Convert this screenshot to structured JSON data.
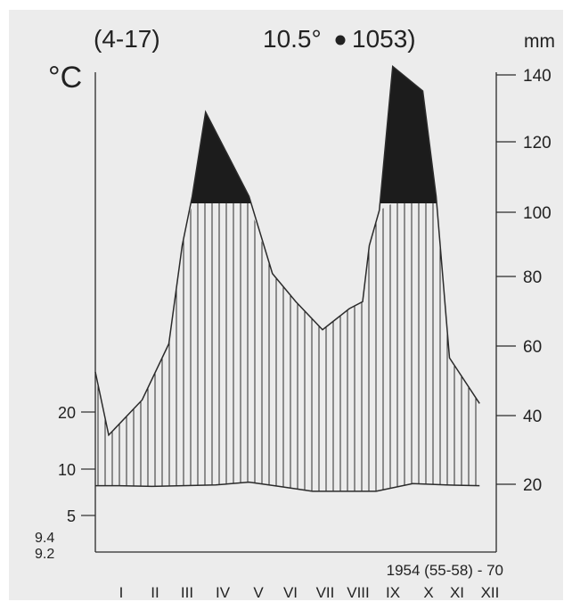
{
  "header": {
    "period_years": "(4-17)",
    "mean_temp": "10.5°",
    "annual_precip": "1053)"
  },
  "footer": {
    "observation_years": "1954 (55-58) - 70"
  },
  "colors": {
    "background": "#ececec",
    "line": "#2b2b2b",
    "hatch": "#2b2b2b",
    "surplus": "#1c1c1c"
  },
  "chart_data": {
    "type": "climate-diagram",
    "temp_unit": "°C",
    "precip_unit": "mm",
    "months": [
      "I",
      "II",
      "III",
      "IV",
      "V",
      "VI",
      "VII",
      "VIII",
      "IX",
      "X",
      "XI",
      "XII"
    ],
    "temp_ticks": [
      5,
      10,
      20
    ],
    "temp_minor_labels": [
      "9.4",
      "9.2"
    ],
    "precip_ticks": [
      20,
      40,
      60,
      80,
      100,
      120,
      140
    ],
    "temperature_curve": {
      "x": [
        0,
        0.7,
        1.7,
        2.6,
        3.6,
        4.6,
        5.5,
        6.5,
        7.5,
        8.4,
        9.5,
        10.5,
        11.5
      ],
      "y": [
        7.8,
        7.8,
        7.7,
        7.8,
        7.9,
        8.3,
        7.7,
        7.0,
        7.0,
        7.0,
        8.1,
        7.9,
        7.8
      ]
    },
    "precipitation_curve": {
      "x": [
        0,
        0.4,
        1.4,
        2.2,
        2.6,
        2.9,
        3.3,
        4.6,
        5.3,
        6.0,
        6.8,
        7.6,
        8.0,
        8.2,
        8.5,
        8.9,
        9.8,
        10.2,
        10.6,
        11.5
      ],
      "y": [
        52,
        34,
        44,
        60,
        88,
        102,
        126,
        102,
        80,
        72,
        64,
        70,
        72,
        88,
        98,
        139,
        132,
        102,
        56,
        43
      ]
    }
  }
}
